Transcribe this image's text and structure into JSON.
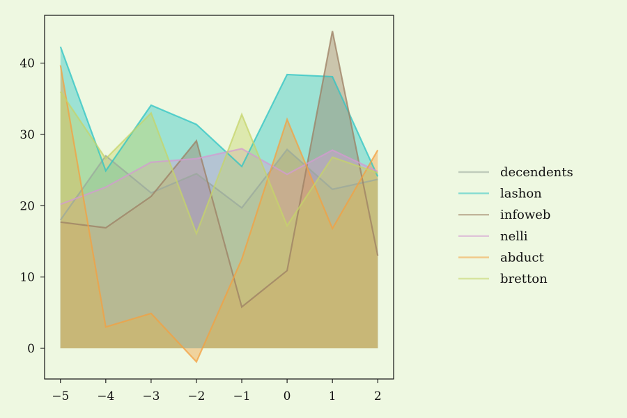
{
  "chart_data": {
    "type": "area",
    "x": [
      -5,
      -4,
      -3,
      -2,
      -1,
      0,
      1,
      2
    ],
    "xlim": [
      -5.35,
      2.35
    ],
    "ylim": [
      -4.3,
      46.7
    ],
    "xticks": [
      -5,
      -4,
      -3,
      -2,
      -1,
      0,
      1,
      2
    ],
    "xtick_labels": [
      "−5",
      "−4",
      "−3",
      "−2",
      "−1",
      "0",
      "1",
      "2"
    ],
    "yticks": [
      0,
      10,
      20,
      30,
      40
    ],
    "ytick_labels": [
      "0",
      "10",
      "20",
      "30",
      "40"
    ],
    "grid": false,
    "legend_position": "right, outside plot",
    "background": "#eef8e1",
    "plot_background": "#eef8e1",
    "series": [
      {
        "name": "decendents",
        "color": "#9aa89c",
        "values": [
          18.0,
          27.0,
          21.8,
          24.5,
          19.7,
          27.9,
          22.3,
          23.7
        ]
      },
      {
        "name": "lashon",
        "color": "#2ec4c4",
        "values": [
          42.3,
          24.9,
          34.1,
          31.4,
          25.5,
          38.4,
          38.1,
          24.1
        ]
      },
      {
        "name": "infoweb",
        "color": "#9c7f63",
        "values": [
          17.7,
          16.9,
          21.3,
          29.1,
          5.8,
          10.9,
          44.5,
          13.0
        ]
      },
      {
        "name": "nelli",
        "color": "#d49ad2",
        "values": [
          20.2,
          22.6,
          26.1,
          26.6,
          28.0,
          24.4,
          27.8,
          24.8
        ]
      },
      {
        "name": "abduct",
        "color": "#f4a040",
        "values": [
          39.7,
          3.0,
          4.9,
          -1.9,
          12.5,
          32.1,
          16.8,
          27.8
        ]
      },
      {
        "name": "bretton",
        "color": "#c5d46a",
        "values": [
          36.0,
          26.6,
          33.0,
          16.1,
          32.8,
          17.2,
          26.8,
          24.6
        ]
      }
    ]
  }
}
